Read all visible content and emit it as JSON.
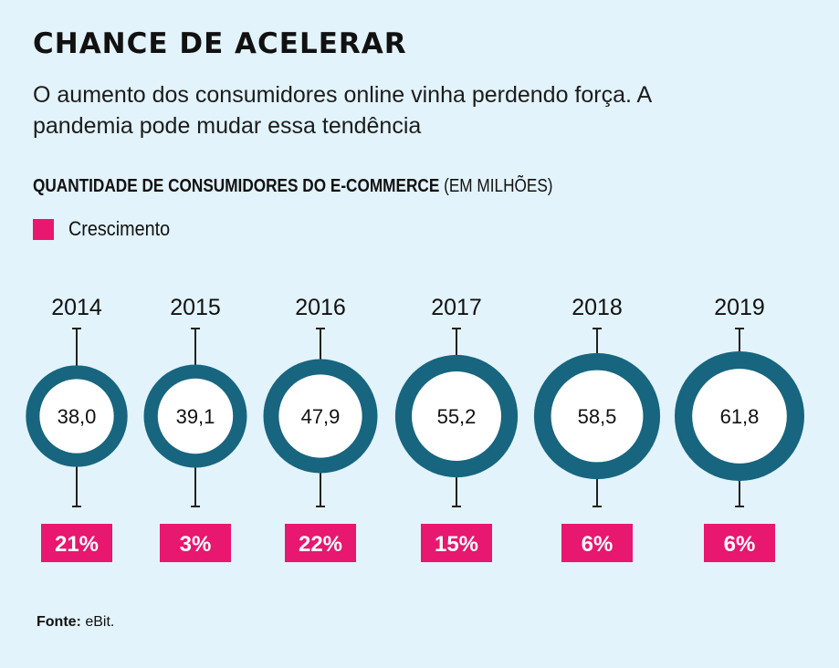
{
  "header": {
    "title": "CHANCE DE ACELERAR",
    "subtitle": "O aumento dos consumidores online vinha perdendo força. A pandemia pode mudar essa tendência"
  },
  "chart_heading": {
    "bold": "QUANTIDADE DE CONSUMIDORES DO E-COMMERCE",
    "normal": "(EM MILHÕES)"
  },
  "legend": {
    "label": "Crescimento",
    "color": "#e8176f"
  },
  "colors": {
    "ring": "#17657f",
    "growth_box": "#e8176f",
    "background": "#e2f3fb"
  },
  "chart_data": {
    "type": "bubble",
    "title": "QUANTIDADE DE CONSUMIDORES DO E-COMMERCE (EM MILHÕES)",
    "categories": [
      "2014",
      "2015",
      "2016",
      "2017",
      "2018",
      "2019"
    ],
    "values": [
      38.0,
      39.1,
      47.9,
      55.2,
      58.5,
      61.8
    ],
    "value_labels": [
      "38,0",
      "39,1",
      "47,9",
      "55,2",
      "58,5",
      "61,8"
    ],
    "growth_labels": [
      "21%",
      "3%",
      "22%",
      "15%",
      "6%",
      "6%"
    ],
    "growth_series_name": "Crescimento"
  },
  "source": {
    "label": "Fonte:",
    "text": "eBit."
  }
}
